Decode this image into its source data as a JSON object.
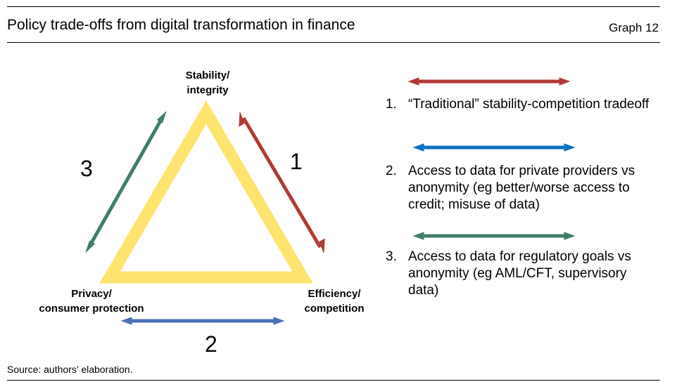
{
  "header": {
    "title": "Policy trade-offs from digital transformation in finance",
    "graph_label": "Graph 12"
  },
  "diagram": {
    "vertices": {
      "top": [
        "Stability/",
        "integrity"
      ],
      "left": [
        "Privacy/",
        "consumer protection"
      ],
      "right": [
        "Efficiency/",
        "competition"
      ]
    },
    "edge_numbers": [
      "1",
      "2",
      "3"
    ],
    "colors": {
      "triangle": "#fde46f",
      "tradeoff_1": "#b03a36",
      "tradeoff_2": "#4a72b4",
      "tradeoff_3": "#3f7f66",
      "legend_2": "#0b6fbd"
    }
  },
  "legend": [
    {
      "number": "1.",
      "text": "“Traditional” stability-competition tradeoff"
    },
    {
      "number": "2.",
      "text": "Access to data for private providers vs anonymity (eg better/worse access to credit; misuse of data)"
    },
    {
      "number": "3.",
      "text": "Access to data for regulatory goals vs anonymity (eg AML/CFT, supervisory data)"
    }
  ],
  "footer": {
    "source": "Source: authors’ elaboration."
  }
}
